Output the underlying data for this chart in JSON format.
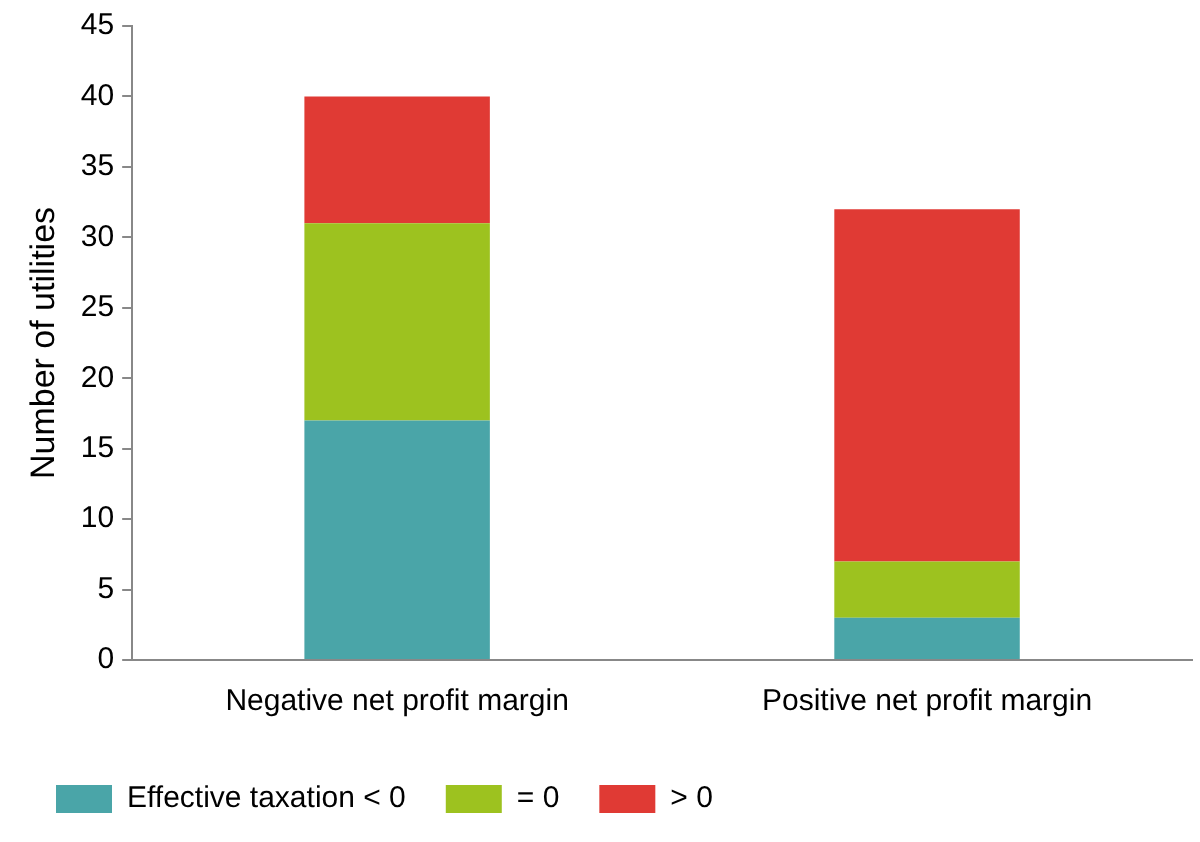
{
  "chart_data": {
    "type": "bar",
    "stacked": true,
    "ylabel": "Number of utilities",
    "categories": [
      "Negative net profit margin",
      "Positive net profit margin"
    ],
    "series": [
      {
        "name": "Effective taxation < 0",
        "color": "#4aa5a8",
        "values": [
          17,
          3
        ]
      },
      {
        "name": "= 0",
        "color": "#9dc21f",
        "values": [
          14,
          4
        ]
      },
      {
        "name": "> 0",
        "color": "#e03a34",
        "values": [
          9,
          25
        ]
      }
    ],
    "ylim": [
      0,
      45
    ],
    "yticks": [
      0,
      5,
      10,
      15,
      20,
      25,
      30,
      35,
      40,
      45
    ],
    "grid": false,
    "legend": "bottom"
  }
}
